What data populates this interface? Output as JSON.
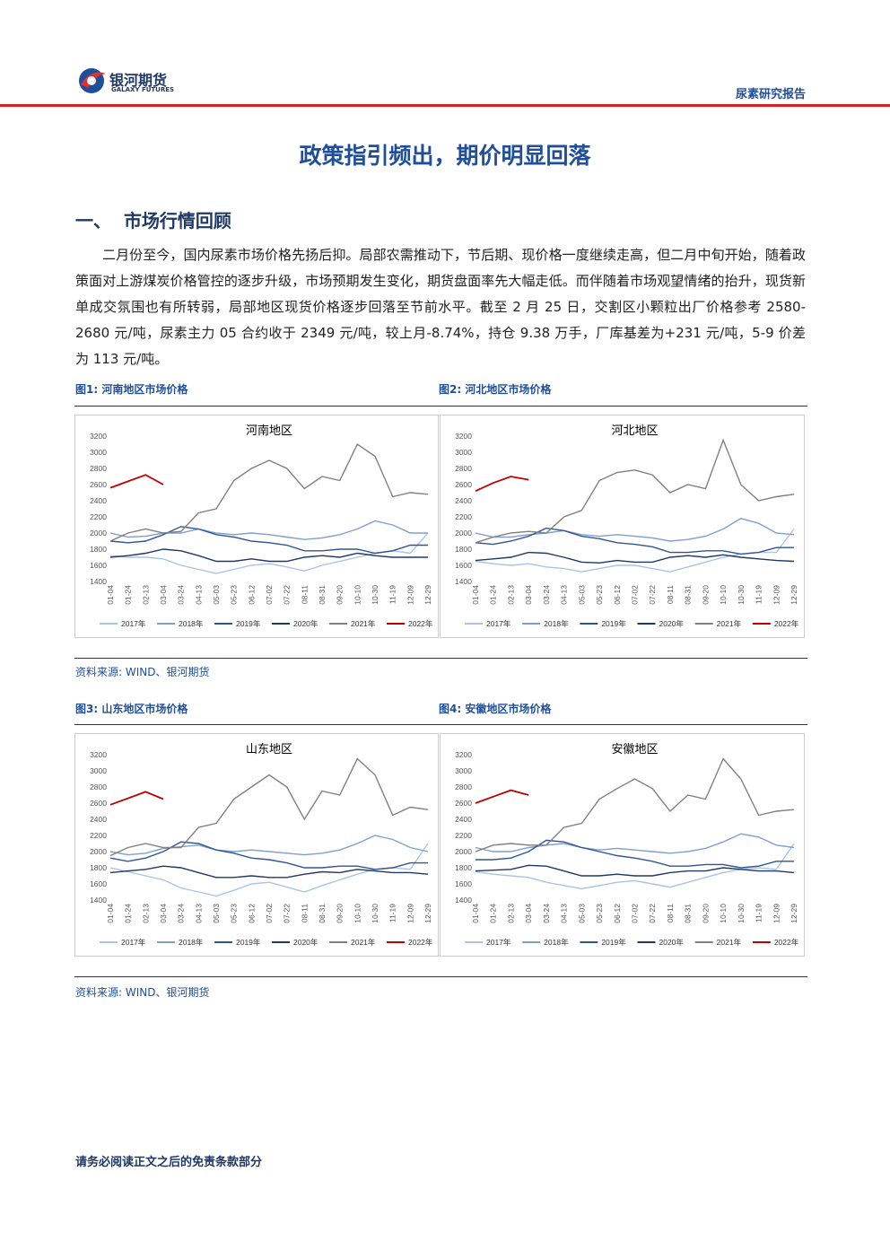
{
  "header": {
    "logo_cn": "银河期货",
    "logo_en": "GALAXY FUTURES",
    "report_type": "尿素研究报告"
  },
  "title": "政策指引频出，期价明显回落",
  "section": {
    "number": "一、",
    "title": "市场行情回顾"
  },
  "paragraph": "二月份至今，国内尿素市场价格先扬后抑。局部农需推动下，节后期、现价格一度继续走高，但二月中旬开始，随着政策面对上游煤炭价格管控的逐步升级，市场预期发生变化，期货盘面率先大幅走低。而伴随着市场观望情绪的抬升，现货新单成交氛围也有所转弱，局部地区现货价格逐步回落至节前水平。截至 2 月 25 日，交割区小颗粒出厂价格参考 2580-2680 元/吨，尿素主力 05 合约收于 2349 元/吨，较上月-8.74%，持仓 9.38 万手，厂库基差为+231 元/吨，5-9 价差为 113 元/吨。",
  "sources": [
    "资料来源: WIND、银河期货",
    "资料来源: WIND、银河期货"
  ],
  "footer": "请务必阅读正文之后的免责条款部分",
  "chart_data": [
    {
      "type": "line",
      "caption": "图1: 河南地区市场价格",
      "title": "河南地区",
      "categories": [
        "01-04",
        "01-24",
        "02-13",
        "03-04",
        "03-24",
        "04-13",
        "05-03",
        "05-23",
        "06-12",
        "07-02",
        "07-22",
        "08-11",
        "08-31",
        "09-20",
        "10-10",
        "10-30",
        "11-19",
        "12-09",
        "12-29"
      ],
      "ylim": [
        1400,
        3200
      ],
      "yticks": [
        1400,
        1600,
        1800,
        2000,
        2200,
        2400,
        2600,
        2800,
        3000,
        3200
      ],
      "series": [
        {
          "name": "2017年",
          "color": "#a9c4e8",
          "values": [
            1720,
            1700,
            1700,
            1680,
            1600,
            1550,
            1500,
            1550,
            1600,
            1620,
            1580,
            1530,
            1600,
            1650,
            1700,
            1750,
            1780,
            1750,
            2000
          ]
        },
        {
          "name": "2018年",
          "color": "#7f9fcf",
          "values": [
            2000,
            1950,
            1960,
            2000,
            2000,
            2050,
            2000,
            1980,
            2000,
            1980,
            1950,
            1920,
            1940,
            1980,
            2050,
            2150,
            2100,
            2000,
            2000
          ]
        },
        {
          "name": "2019年",
          "color": "#2f5597",
          "values": [
            1900,
            1880,
            1900,
            1980,
            2080,
            2050,
            1980,
            1950,
            1900,
            1880,
            1850,
            1780,
            1780,
            1800,
            1800,
            1750,
            1780,
            1850,
            1850
          ]
        },
        {
          "name": "2020年",
          "color": "#1f3864",
          "values": [
            1700,
            1720,
            1750,
            1800,
            1780,
            1720,
            1650,
            1650,
            1680,
            1650,
            1650,
            1700,
            1720,
            1700,
            1750,
            1720,
            1700,
            1700,
            1700
          ]
        },
        {
          "name": "2021年",
          "color": "#808080",
          "values": [
            1900,
            2000,
            2050,
            2000,
            2020,
            2250,
            2300,
            2650,
            2800,
            2900,
            2800,
            2550,
            2700,
            2650,
            3100,
            2950,
            2450,
            2500,
            2480
          ]
        },
        {
          "name": "2022年",
          "color": "#c00000",
          "values": [
            2560,
            2640,
            2720,
            2600,
            null,
            null,
            null,
            null,
            null,
            null,
            null,
            null,
            null,
            null,
            null,
            null,
            null,
            null,
            null
          ]
        }
      ]
    },
    {
      "type": "line",
      "caption": "图2: 河北地区市场价格",
      "title": "河北地区",
      "categories": [
        "01-04",
        "01-24",
        "02-13",
        "03-04",
        "03-24",
        "04-13",
        "05-03",
        "05-23",
        "06-12",
        "07-02",
        "07-22",
        "08-11",
        "08-31",
        "09-20",
        "10-10",
        "10-30",
        "11-19",
        "12-09",
        "12-29"
      ],
      "ylim": [
        1400,
        3200
      ],
      "yticks": [
        1400,
        1600,
        1800,
        2000,
        2200,
        2400,
        2600,
        2800,
        3000,
        3200
      ],
      "series": [
        {
          "name": "2017年",
          "color": "#a9c4e8",
          "values": [
            1650,
            1620,
            1600,
            1620,
            1580,
            1560,
            1520,
            1560,
            1600,
            1600,
            1560,
            1520,
            1580,
            1640,
            1700,
            1740,
            1760,
            1760,
            2050
          ]
        },
        {
          "name": "2018年",
          "color": "#7f9fcf",
          "values": [
            2000,
            1950,
            1950,
            1980,
            2000,
            2030,
            1980,
            1960,
            1980,
            1960,
            1940,
            1900,
            1920,
            1960,
            2050,
            2180,
            2120,
            2000,
            1980
          ]
        },
        {
          "name": "2019年",
          "color": "#2f5597",
          "values": [
            1880,
            1860,
            1900,
            1960,
            2060,
            2030,
            1960,
            1930,
            1880,
            1860,
            1830,
            1760,
            1760,
            1780,
            1780,
            1740,
            1760,
            1820,
            1820
          ]
        },
        {
          "name": "2020年",
          "color": "#1f3864",
          "values": [
            1660,
            1680,
            1700,
            1760,
            1750,
            1700,
            1640,
            1630,
            1660,
            1640,
            1640,
            1700,
            1720,
            1700,
            1730,
            1700,
            1680,
            1660,
            1650
          ]
        },
        {
          "name": "2021年",
          "color": "#808080",
          "values": [
            1880,
            1950,
            2000,
            2020,
            2000,
            2200,
            2280,
            2650,
            2750,
            2780,
            2720,
            2500,
            2600,
            2550,
            3150,
            2600,
            2400,
            2450,
            2480
          ]
        },
        {
          "name": "2022年",
          "color": "#c00000",
          "values": [
            2520,
            2620,
            2700,
            2660,
            null,
            null,
            null,
            null,
            null,
            null,
            null,
            null,
            null,
            null,
            null,
            null,
            null,
            null,
            null
          ]
        }
      ]
    },
    {
      "type": "line",
      "caption": "图3: 山东地区市场价格",
      "title": "山东地区",
      "categories": [
        "01-04",
        "01-24",
        "02-13",
        "03-04",
        "03-24",
        "04-13",
        "05-03",
        "05-23",
        "06-12",
        "07-02",
        "07-22",
        "08-11",
        "08-31",
        "09-20",
        "10-10",
        "10-30",
        "11-19",
        "12-09",
        "12-29"
      ],
      "ylim": [
        1400,
        3200
      ],
      "yticks": [
        1400,
        1600,
        1800,
        2000,
        2200,
        2400,
        2600,
        2800,
        3000,
        3200
      ],
      "series": [
        {
          "name": "2017年",
          "color": "#a9c4e8",
          "values": [
            1800,
            1750,
            1700,
            1650,
            1550,
            1500,
            1450,
            1520,
            1600,
            1620,
            1560,
            1500,
            1580,
            1650,
            1720,
            1780,
            1800,
            1780,
            2100
          ]
        },
        {
          "name": "2018年",
          "color": "#7f9fcf",
          "values": [
            2000,
            1960,
            1980,
            2040,
            2060,
            2080,
            2020,
            2000,
            2020,
            2000,
            1980,
            1960,
            1980,
            2020,
            2100,
            2200,
            2150,
            2050,
            2000
          ]
        },
        {
          "name": "2019年",
          "color": "#2f5597",
          "values": [
            1920,
            1880,
            1920,
            2000,
            2120,
            2100,
            2020,
            1980,
            1920,
            1900,
            1860,
            1800,
            1800,
            1820,
            1820,
            1780,
            1800,
            1860,
            1860
          ]
        },
        {
          "name": "2020年",
          "color": "#1f3864",
          "values": [
            1740,
            1760,
            1780,
            1820,
            1800,
            1740,
            1680,
            1680,
            1700,
            1680,
            1680,
            1720,
            1750,
            1740,
            1780,
            1760,
            1740,
            1740,
            1720
          ]
        },
        {
          "name": "2021年",
          "color": "#808080",
          "values": [
            1950,
            2050,
            2100,
            2050,
            2050,
            2300,
            2350,
            2650,
            2800,
            2950,
            2800,
            2400,
            2750,
            2700,
            3150,
            2950,
            2450,
            2550,
            2520
          ]
        },
        {
          "name": "2022年",
          "color": "#c00000",
          "values": [
            2580,
            2660,
            2740,
            2650,
            null,
            null,
            null,
            null,
            null,
            null,
            null,
            null,
            null,
            null,
            null,
            null,
            null,
            null,
            null
          ]
        }
      ]
    },
    {
      "type": "line",
      "caption": "图4: 安徽地区市场价格",
      "title": "安徽地区",
      "categories": [
        "01-04",
        "01-24",
        "02-13",
        "03-04",
        "03-24",
        "04-13",
        "05-03",
        "05-23",
        "06-12",
        "07-02",
        "07-22",
        "08-11",
        "08-31",
        "09-20",
        "10-10",
        "10-30",
        "11-19",
        "12-09",
        "12-29"
      ],
      "ylim": [
        1400,
        3200
      ],
      "yticks": [
        1400,
        1600,
        1800,
        2000,
        2200,
        2400,
        2600,
        2800,
        3000,
        3200
      ],
      "series": [
        {
          "name": "2017年",
          "color": "#a9c4e8",
          "values": [
            1750,
            1720,
            1700,
            1680,
            1620,
            1580,
            1540,
            1580,
            1620,
            1640,
            1600,
            1560,
            1620,
            1680,
            1740,
            1780,
            1800,
            1780,
            2100
          ]
        },
        {
          "name": "2018年",
          "color": "#7f9fcf",
          "values": [
            2050,
            2000,
            2000,
            2050,
            2080,
            2100,
            2050,
            2020,
            2040,
            2020,
            2000,
            1980,
            2000,
            2040,
            2120,
            2220,
            2180,
            2080,
            2050
          ]
        },
        {
          "name": "2019年",
          "color": "#2f5597",
          "values": [
            1900,
            1900,
            1920,
            2000,
            2140,
            2120,
            2050,
            2000,
            1950,
            1920,
            1880,
            1820,
            1820,
            1840,
            1840,
            1800,
            1820,
            1880,
            1880
          ]
        },
        {
          "name": "2020年",
          "color": "#1f3864",
          "values": [
            1760,
            1770,
            1780,
            1830,
            1820,
            1760,
            1700,
            1700,
            1720,
            1700,
            1700,
            1740,
            1760,
            1760,
            1800,
            1780,
            1760,
            1760,
            1740
          ]
        },
        {
          "name": "2021年",
          "color": "#808080",
          "values": [
            2000,
            2080,
            2100,
            2080,
            2080,
            2300,
            2350,
            2650,
            2780,
            2900,
            2780,
            2500,
            2700,
            2650,
            3150,
            2900,
            2450,
            2500,
            2520
          ]
        },
        {
          "name": "2022年",
          "color": "#c00000",
          "values": [
            2600,
            2680,
            2760,
            2700,
            null,
            null,
            null,
            null,
            null,
            null,
            null,
            null,
            null,
            null,
            null,
            null,
            null,
            null,
            null
          ]
        }
      ]
    }
  ]
}
